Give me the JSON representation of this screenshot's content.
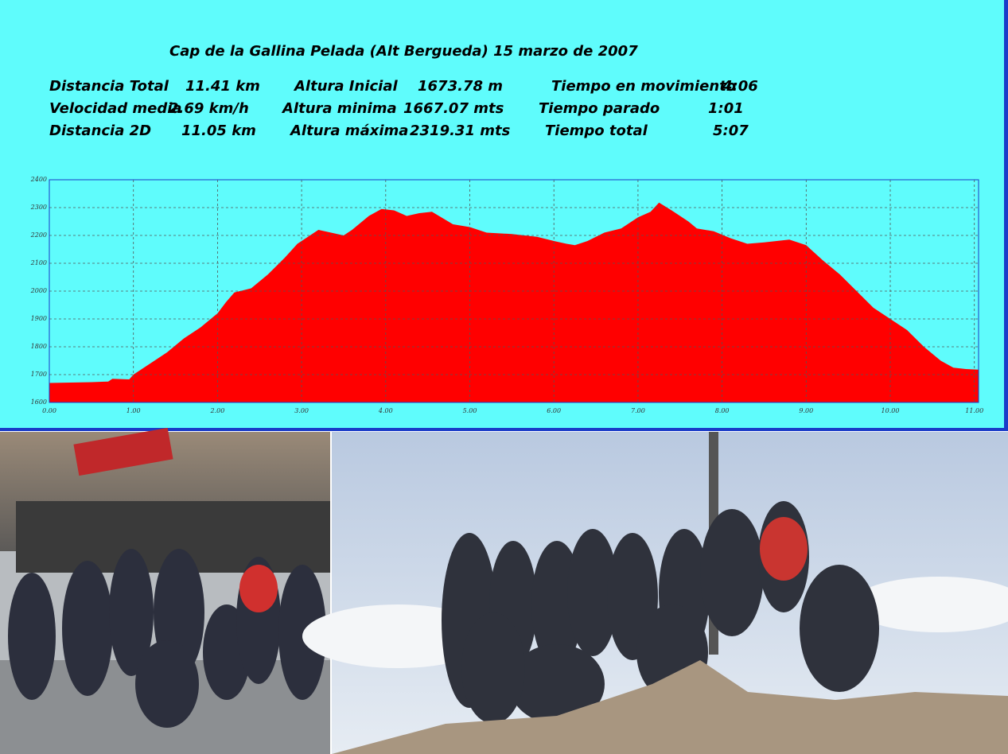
{
  "chart_data": {
    "type": "area",
    "title": "Cap de la Gallina Pelada  (Alt Bergueda)  15 marzo de 2007",
    "stats": [
      [
        {
          "label": "Distancia Total",
          "value": "11.41 km"
        },
        {
          "label": "Altura Inicial",
          "value": "1673.78 m"
        },
        {
          "label": "Tiempo en movimiento",
          "value": "4:06"
        }
      ],
      [
        {
          "label": "Velocidad media",
          "value": "2.69 km/h"
        },
        {
          "label": "Altura minima",
          "value": "1667.07 mts"
        },
        {
          "label": "Tiempo  parado",
          "value": "1:01"
        }
      ],
      [
        {
          "label": "Distancia  2D",
          "value": "11.05 km"
        },
        {
          "label": "Altura máxima",
          "value": "2319.31 mts"
        },
        {
          "label": "Tiempo total",
          "value": "5:07"
        }
      ]
    ],
    "color": "#ff0000",
    "grid": true,
    "xlim": [
      0,
      11.05
    ],
    "ylim": [
      1600,
      2400
    ],
    "xticks": [
      {
        "value": 0,
        "label": "0.00"
      },
      {
        "value": 1,
        "label": "1.00"
      },
      {
        "value": 2,
        "label": "2.00"
      },
      {
        "value": 3,
        "label": "3.00"
      },
      {
        "value": 4,
        "label": "4.00"
      },
      {
        "value": 5,
        "label": "5.00"
      },
      {
        "value": 6,
        "label": "6.00"
      },
      {
        "value": 7,
        "label": "7.00"
      },
      {
        "value": 8,
        "label": "8.00"
      },
      {
        "value": 9,
        "label": "9.00"
      },
      {
        "value": 10,
        "label": "10.00"
      },
      {
        "value": 11,
        "label": "11.00"
      }
    ],
    "yticks": [
      1600,
      1700,
      1800,
      1900,
      2000,
      2100,
      2200,
      2300,
      2400
    ],
    "x": [
      0,
      0.5,
      0.7,
      0.75,
      0.95,
      1.0,
      1.2,
      1.4,
      1.6,
      1.8,
      2.0,
      2.1,
      2.2,
      2.4,
      2.6,
      2.8,
      2.95,
      3.1,
      3.2,
      3.35,
      3.5,
      3.6,
      3.8,
      3.95,
      4.1,
      4.25,
      4.4,
      4.55,
      4.8,
      5.0,
      5.2,
      5.5,
      5.8,
      6.0,
      6.15,
      6.25,
      6.4,
      6.6,
      6.8,
      7.0,
      7.15,
      7.25,
      7.4,
      7.6,
      7.7,
      7.9,
      8.1,
      8.3,
      8.5,
      8.8,
      9.0,
      9.2,
      9.4,
      9.6,
      9.8,
      10.0,
      10.2,
      10.4,
      10.6,
      10.75,
      10.9,
      11.05
    ],
    "values": [
      1670,
      1673,
      1675,
      1685,
      1683,
      1700,
      1740,
      1780,
      1830,
      1870,
      1920,
      1960,
      1995,
      2010,
      2060,
      2120,
      2170,
      2200,
      2220,
      2210,
      2200,
      2220,
      2270,
      2295,
      2290,
      2270,
      2280,
      2285,
      2240,
      2230,
      2210,
      2205,
      2195,
      2180,
      2170,
      2165,
      2180,
      2210,
      2225,
      2265,
      2285,
      2318,
      2290,
      2250,
      2225,
      2215,
      2190,
      2170,
      2175,
      2185,
      2165,
      2110,
      2060,
      2000,
      1940,
      1900,
      1860,
      1800,
      1750,
      1725,
      1720,
      1718
    ]
  }
}
